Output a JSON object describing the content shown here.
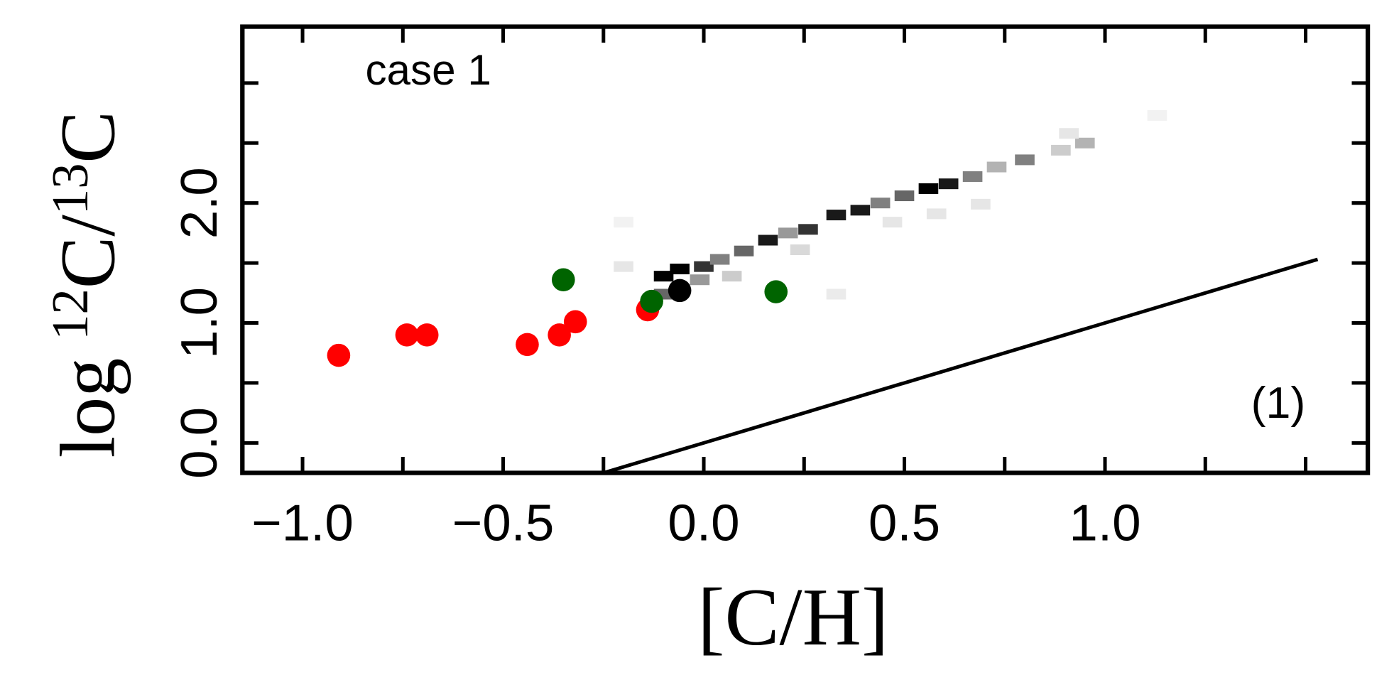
{
  "chart_data": {
    "type": "scatter",
    "annotation": "case 1",
    "panel_label": "(1)",
    "x_label": "[C/H]",
    "y_label": {
      "prefix": "log",
      "sup1": "12",
      "mid": "C/",
      "sup2": "13",
      "end": "C"
    },
    "xlim": [
      -1.15,
      1.655
    ],
    "ylim": [
      -0.25,
      3.47
    ],
    "xticks": [
      {
        "value": -1.0,
        "label": "−1.0"
      },
      {
        "value": -0.5,
        "label": "−0.5"
      },
      {
        "value": 0.0,
        "label": "0.0"
      },
      {
        "value": 0.5,
        "label": "0.5"
      },
      {
        "value": 1.0,
        "label": "1.0"
      }
    ],
    "xminor_ticks": [
      -0.75,
      -0.25,
      0.25,
      0.75,
      1.25,
      1.5
    ],
    "yticks": [
      {
        "value": 0.0,
        "label": "0.0"
      },
      {
        "value": 1.0,
        "label": "1.0"
      },
      {
        "value": 2.0,
        "label": "2.0"
      }
    ],
    "yminor_ticks": [
      0.5,
      1.5,
      2.5,
      3.0
    ],
    "density": {
      "color": "#000000",
      "x": [
        -0.1,
        -0.06,
        0.0,
        0.04,
        0.1,
        0.16,
        0.21,
        0.26,
        0.33,
        0.39,
        0.44,
        0.5,
        0.56,
        0.61,
        0.67,
        0.73,
        0.8,
        0.89,
        0.95,
        -0.1,
        -0.01,
        -0.2,
        0.07,
        0.24,
        0.47,
        0.69,
        0.91,
        1.13,
        0.58,
        0.33,
        -0.2
      ],
      "y": [
        1.39,
        1.45,
        1.47,
        1.53,
        1.6,
        1.69,
        1.75,
        1.78,
        1.9,
        1.94,
        2.0,
        2.06,
        2.12,
        2.16,
        2.22,
        2.3,
        2.36,
        2.44,
        2.5,
        1.24,
        1.36,
        1.47,
        1.39,
        1.61,
        1.84,
        1.99,
        2.58,
        2.73,
        1.91,
        1.24,
        1.84
      ],
      "values": [
        1.0,
        1.0,
        0.8,
        0.5,
        0.6,
        0.9,
        0.4,
        0.8,
        0.9,
        0.9,
        0.5,
        0.6,
        1.0,
        0.9,
        0.5,
        0.3,
        0.5,
        0.2,
        0.3,
        0.6,
        0.4,
        0.1,
        0.2,
        0.15,
        0.1,
        0.1,
        0.1,
        0.05,
        0.1,
        0.08,
        0.05
      ]
    },
    "line": {
      "color": "#000000",
      "x": [
        -0.25,
        1.53
      ],
      "y": [
        -0.25,
        1.53
      ]
    },
    "series": [
      {
        "color": "#ff0000",
        "x": [
          -0.91,
          -0.74,
          -0.69,
          -0.44,
          -0.36,
          -0.32,
          -0.14
        ],
        "y": [
          0.73,
          0.9,
          0.9,
          0.82,
          0.9,
          1.01,
          1.11
        ]
      },
      {
        "color": "#006400",
        "x": [
          -0.35,
          -0.13,
          0.18
        ],
        "y": [
          1.36,
          1.18,
          1.26
        ]
      },
      {
        "color": "#000000",
        "x": [
          -0.06
        ],
        "y": [
          1.27
        ]
      }
    ]
  }
}
